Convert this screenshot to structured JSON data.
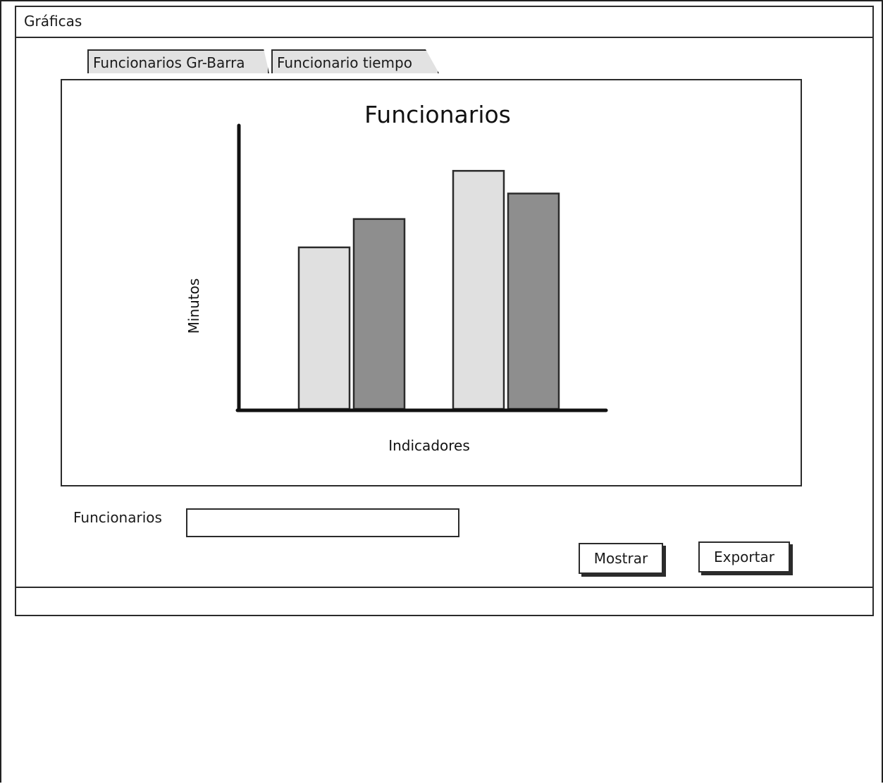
{
  "window": {
    "title": "Gráficas"
  },
  "tabs": [
    {
      "label": "Funcionarios Gr-Barra",
      "active": true
    },
    {
      "label": "Funcionario tiempo",
      "active": false
    }
  ],
  "form": {
    "funcionarios_label": "Funcionarios",
    "funcionarios_value": "",
    "mostrar_label": "Mostrar",
    "exportar_label": "Exportar"
  },
  "colors": {
    "series_light": "#e0e0e0",
    "series_dark": "#8e8e8e",
    "stroke": "#2b2b2b"
  },
  "chart_data": {
    "type": "bar",
    "title": "Funcionarios",
    "xlabel": "Indicadores",
    "ylabel": "Minutos",
    "categories": [
      "",
      ""
    ],
    "series": [
      {
        "values": [
          57,
          84
        ]
      },
      {
        "values": [
          67,
          76
        ]
      }
    ],
    "ylim": [
      0,
      100
    ],
    "grid": false,
    "legend": "none"
  }
}
